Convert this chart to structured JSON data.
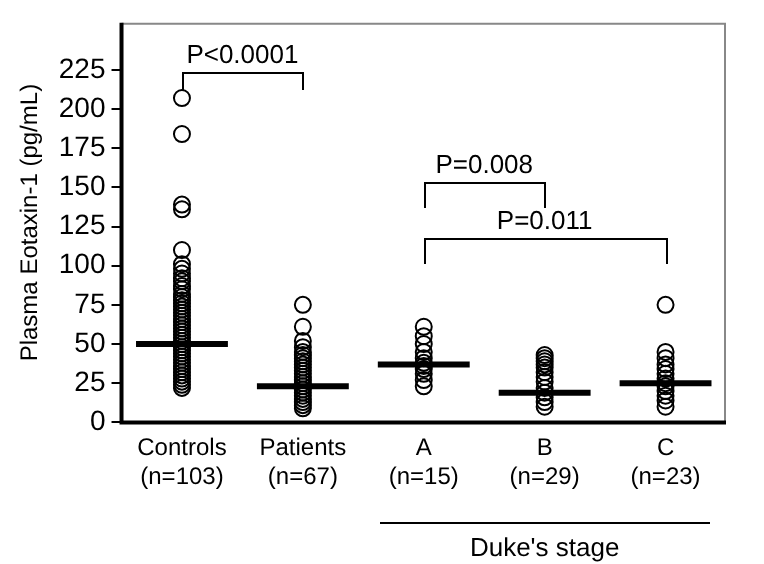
{
  "chart_data": {
    "type": "scatter",
    "ylabel": "Plasma Eotaxin-1 (pg/mL)",
    "categories": [
      "Controls\n(n=103)",
      "Patients\n(n=67)",
      "A\n(n=15)",
      "B\n(n=29)",
      "C\n(n=23)"
    ],
    "ylim": [
      0,
      255
    ],
    "yticks": [
      0,
      25,
      50,
      75,
      100,
      125,
      150,
      175,
      200,
      225
    ],
    "grid": false,
    "legend": false,
    "marker": "circle",
    "series": [
      {
        "type": "scatter",
        "color": "#000000",
        "x": [
          "Controls\n(n=103)",
          "Controls\n(n=103)",
          "Controls\n(n=103)",
          "Controls\n(n=103)",
          "Controls\n(n=103)",
          "Controls\n(n=103)",
          "Controls\n(n=103)",
          "Controls\n(n=103)",
          "Controls\n(n=103)",
          "Controls\n(n=103)",
          "Controls\n(n=103)",
          "Controls\n(n=103)",
          "Controls\n(n=103)",
          "Controls\n(n=103)",
          "Controls\n(n=103)",
          "Controls\n(n=103)",
          "Controls\n(n=103)",
          "Controls\n(n=103)",
          "Controls\n(n=103)",
          "Controls\n(n=103)",
          "Controls\n(n=103)",
          "Controls\n(n=103)",
          "Controls\n(n=103)",
          "Controls\n(n=103)",
          "Controls\n(n=103)",
          "Controls\n(n=103)",
          "Controls\n(n=103)",
          "Controls\n(n=103)",
          "Controls\n(n=103)",
          "Controls\n(n=103)",
          "Controls\n(n=103)",
          "Controls\n(n=103)",
          "Controls\n(n=103)",
          "Controls\n(n=103)",
          "Controls\n(n=103)",
          "Controls\n(n=103)",
          "Controls\n(n=103)",
          "Controls\n(n=103)",
          "Controls\n(n=103)",
          "Controls\n(n=103)",
          "Controls\n(n=103)",
          "Controls\n(n=103)",
          "Controls\n(n=103)",
          "Patients\n(n=67)",
          "Patients\n(n=67)",
          "Patients\n(n=67)",
          "Patients\n(n=67)",
          "Patients\n(n=67)",
          "Patients\n(n=67)",
          "Patients\n(n=67)",
          "Patients\n(n=67)",
          "Patients\n(n=67)",
          "Patients\n(n=67)",
          "Patients\n(n=67)",
          "Patients\n(n=67)",
          "Patients\n(n=67)",
          "Patients\n(n=67)",
          "Patients\n(n=67)",
          "Patients\n(n=67)",
          "Patients\n(n=67)",
          "Patients\n(n=67)",
          "Patients\n(n=67)",
          "Patients\n(n=67)",
          "Patients\n(n=67)",
          "Patients\n(n=67)",
          "Patients\n(n=67)",
          "A\n(n=15)",
          "A\n(n=15)",
          "A\n(n=15)",
          "A\n(n=15)",
          "A\n(n=15)",
          "A\n(n=15)",
          "A\n(n=15)",
          "A\n(n=15)",
          "A\n(n=15)",
          "A\n(n=15)",
          "A\n(n=15)",
          "B\n(n=29)",
          "B\n(n=29)",
          "B\n(n=29)",
          "B\n(n=29)",
          "B\n(n=29)",
          "B\n(n=29)",
          "B\n(n=29)",
          "B\n(n=29)",
          "B\n(n=29)",
          "B\n(n=29)",
          "B\n(n=29)",
          "B\n(n=29)",
          "B\n(n=29)",
          "C\n(n=23)",
          "C\n(n=23)",
          "C\n(n=23)",
          "C\n(n=23)",
          "C\n(n=23)",
          "C\n(n=23)",
          "C\n(n=23)",
          "C\n(n=23)",
          "C\n(n=23)",
          "C\n(n=23)",
          "C\n(n=23)",
          "C\n(n=23)",
          "C\n(n=23)"
        ],
        "values": [
          207,
          184,
          139,
          136,
          110,
          101,
          98,
          95,
          92,
          90,
          87,
          85,
          82,
          80,
          78,
          76,
          74,
          72,
          70,
          68,
          66,
          64,
          62,
          60,
          58,
          56,
          54,
          52,
          50,
          48,
          46,
          44,
          42,
          40,
          38,
          36,
          34,
          32,
          30,
          28,
          26,
          24,
          22,
          75,
          61,
          52,
          48,
          45,
          43,
          41,
          39,
          37,
          35,
          33,
          31,
          29,
          27,
          25,
          23,
          21,
          19,
          17,
          15,
          13,
          11,
          9,
          61,
          55,
          50,
          45,
          41,
          38,
          36,
          34,
          31,
          27,
          23,
          43,
          41,
          39,
          37,
          35,
          32,
          29,
          26,
          22,
          19,
          16,
          13,
          10,
          75,
          45,
          41,
          37,
          34,
          31,
          28,
          25,
          23,
          20,
          17,
          14,
          10
        ]
      },
      {
        "type": "box",
        "color": "#000000",
        "boxes": [
          {
            "low": 50,
            "q1": 50,
            "median": 50,
            "q3": 50,
            "high": 50
          },
          {
            "low": 23,
            "q1": 23,
            "median": 23,
            "q3": 23,
            "high": 23
          },
          {
            "low": 37,
            "q1": 37,
            "median": 37,
            "q3": 37,
            "high": 37
          },
          {
            "low": 19,
            "q1": 19,
            "median": 19,
            "q3": 19,
            "high": 19
          },
          {
            "low": 25,
            "q1": 25,
            "median": 25,
            "q3": 25,
            "high": 25
          }
        ]
      }
    ],
    "annotations": [
      "P<0.0001",
      "P=0.008",
      "P=0.011",
      "Duke's stage"
    ]
  }
}
